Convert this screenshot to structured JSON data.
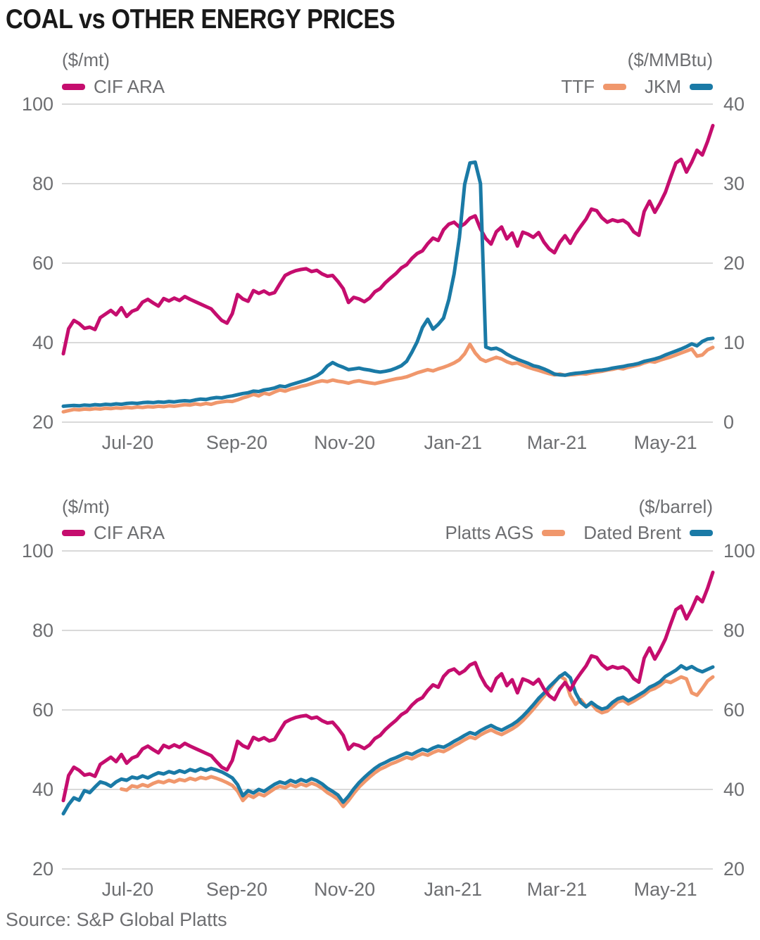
{
  "title": "COAL vs OTHER ENERGY PRICES",
  "source": "Source: S&P Global Platts",
  "colors": {
    "cif_ara": "#c50d6e",
    "ttf": "#f0976c",
    "jkm": "#1a7aa6",
    "platts_ags": "#f0976c",
    "dated_brent": "#1a7aa6",
    "grid": "#d9d9d9",
    "axis_text": "#6d6e71",
    "title_text": "#191919"
  },
  "chart_data": [
    {
      "type": "line",
      "grid": true,
      "legend_position": "top",
      "y_left": {
        "label": "($/mt)",
        "ticks": [
          100,
          80,
          60,
          40,
          20
        ],
        "range": [
          20,
          100
        ]
      },
      "y_right": {
        "label": "($/MMBtu)",
        "ticks": [
          40,
          30,
          20,
          10,
          0
        ],
        "range": [
          0,
          40
        ]
      },
      "x_ticks": [
        {
          "label": "Jul-20",
          "pos": 0.099
        },
        {
          "label": "Sep-20",
          "pos": 0.267
        },
        {
          "label": "Nov-20",
          "pos": 0.433
        },
        {
          "label": "Jan-21",
          "pos": 0.6
        },
        {
          "label": "Mar-21",
          "pos": 0.76
        },
        {
          "label": "May-21",
          "pos": 0.927
        }
      ],
      "legend_left": [
        {
          "name": "CIF ARA",
          "color": "cif_ara"
        }
      ],
      "legend_right": [
        {
          "name": "TTF",
          "color": "ttf"
        },
        {
          "name": "JKM",
          "color": "jkm"
        }
      ],
      "series": [
        {
          "name": "CIF ARA",
          "axis": "left",
          "color": "cif_ara",
          "values": [
            37.2,
            43.5,
            45.6,
            44.8,
            43.6,
            43.9,
            43.3,
            46.3,
            47.2,
            48.1,
            47.0,
            48.8,
            46.6,
            47.9,
            48.4,
            50.2,
            50.9,
            50.0,
            49.2,
            51.1,
            50.5,
            51.2,
            50.6,
            51.6,
            50.9,
            50.3,
            49.7,
            49.1,
            48.5,
            47.0,
            45.6,
            44.9,
            47.3,
            52.1,
            51.0,
            50.4,
            53.1,
            52.4,
            53.0,
            52.2,
            52.6,
            54.8,
            56.9,
            57.6,
            58.1,
            58.4,
            58.6,
            57.9,
            58.2,
            57.3,
            56.7,
            56.9,
            55.4,
            53.6,
            50.1,
            51.4,
            51.0,
            50.3,
            51.2,
            52.8,
            53.6,
            55.1,
            56.3,
            57.4,
            58.8,
            59.6,
            61.2,
            62.4,
            63.1,
            64.9,
            66.3,
            65.7,
            68.4,
            69.8,
            70.3,
            69.1,
            69.9,
            71.3,
            71.9,
            68.6,
            66.2,
            64.8,
            67.9,
            69.1,
            66.1,
            67.6,
            64.3,
            67.8,
            67.3,
            66.5,
            67.7,
            65.3,
            63.6,
            62.6,
            65.2,
            66.9,
            65.0,
            67.4,
            69.3,
            71.1,
            73.6,
            73.2,
            71.4,
            70.3,
            70.9,
            70.5,
            70.8,
            69.9,
            67.9,
            67.0,
            73.0,
            75.6,
            72.8,
            75.1,
            77.8,
            81.6,
            85.2,
            86.1,
            82.9,
            85.4,
            88.4,
            87.2,
            90.6,
            94.6
          ]
        },
        {
          "name": "TTF",
          "axis": "right",
          "color": "ttf",
          "values": [
            1.3,
            1.45,
            1.6,
            1.55,
            1.65,
            1.6,
            1.7,
            1.65,
            1.75,
            1.7,
            1.8,
            1.75,
            1.85,
            1.8,
            1.9,
            1.85,
            1.95,
            1.9,
            2.0,
            1.95,
            2.05,
            2.0,
            2.1,
            2.2,
            2.15,
            2.3,
            2.2,
            2.35,
            2.25,
            2.45,
            2.55,
            2.65,
            2.6,
            2.8,
            3.05,
            3.25,
            3.5,
            3.3,
            3.65,
            3.5,
            3.8,
            4.05,
            3.9,
            4.15,
            4.3,
            4.5,
            4.65,
            4.85,
            5.05,
            5.2,
            5.1,
            5.3,
            5.15,
            5.05,
            4.9,
            5.1,
            5.2,
            5.05,
            4.95,
            4.85,
            5.0,
            5.15,
            5.3,
            5.45,
            5.55,
            5.7,
            5.95,
            6.2,
            6.4,
            6.6,
            6.45,
            6.7,
            6.9,
            7.15,
            7.45,
            7.85,
            8.6,
            9.8,
            8.7,
            7.95,
            7.65,
            7.9,
            8.15,
            7.95,
            7.6,
            7.35,
            7.45,
            7.15,
            6.9,
            6.7,
            6.5,
            6.3,
            6.1,
            5.95,
            6.05,
            5.9,
            5.95,
            6.0,
            6.1,
            6.05,
            6.2,
            6.3,
            6.4,
            6.55,
            6.65,
            6.8,
            6.7,
            6.9,
            7.05,
            7.2,
            7.45,
            7.65,
            7.55,
            7.8,
            8.0,
            8.2,
            8.45,
            8.7,
            8.95,
            9.2,
            8.3,
            8.45,
            9.1,
            9.4
          ]
        },
        {
          "name": "JKM",
          "axis": "right",
          "color": "jkm",
          "values": [
            2.0,
            2.05,
            2.1,
            2.05,
            2.15,
            2.1,
            2.2,
            2.15,
            2.25,
            2.2,
            2.3,
            2.25,
            2.35,
            2.4,
            2.35,
            2.45,
            2.5,
            2.45,
            2.55,
            2.5,
            2.6,
            2.55,
            2.65,
            2.7,
            2.65,
            2.8,
            2.9,
            2.85,
            3.0,
            3.1,
            3.05,
            3.2,
            3.3,
            3.45,
            3.6,
            3.7,
            3.9,
            3.85,
            4.05,
            4.15,
            4.3,
            4.55,
            4.45,
            4.7,
            4.9,
            5.1,
            5.3,
            5.55,
            5.85,
            6.3,
            7.05,
            7.5,
            7.15,
            6.9,
            6.6,
            6.7,
            6.8,
            6.65,
            6.55,
            6.4,
            6.3,
            6.4,
            6.55,
            6.8,
            7.1,
            7.65,
            8.8,
            10.1,
            11.9,
            12.95,
            11.7,
            12.3,
            13.1,
            15.4,
            18.65,
            23.2,
            29.9,
            32.6,
            32.7,
            30.0,
            9.45,
            9.2,
            9.3,
            9.0,
            8.55,
            8.2,
            7.9,
            7.65,
            7.4,
            7.1,
            6.95,
            6.7,
            6.4,
            6.05,
            5.95,
            5.9,
            6.05,
            6.15,
            6.2,
            6.3,
            6.4,
            6.5,
            6.55,
            6.65,
            6.8,
            6.9,
            7.0,
            7.15,
            7.25,
            7.4,
            7.65,
            7.8,
            7.95,
            8.15,
            8.45,
            8.7,
            8.95,
            9.2,
            9.5,
            9.85,
            9.6,
            10.15,
            10.45,
            10.55
          ]
        }
      ]
    },
    {
      "type": "line",
      "grid": true,
      "legend_position": "top",
      "y_left": {
        "label": "($/mt)",
        "ticks": [
          100,
          80,
          60,
          40,
          20
        ],
        "range": [
          20,
          100
        ]
      },
      "y_right": {
        "label": "($/barrel)",
        "ticks": [
          100,
          80,
          60,
          40,
          20
        ],
        "range": [
          20,
          100
        ]
      },
      "x_ticks": [
        {
          "label": "Jul-20",
          "pos": 0.099
        },
        {
          "label": "Sep-20",
          "pos": 0.267
        },
        {
          "label": "Nov-20",
          "pos": 0.433
        },
        {
          "label": "Jan-21",
          "pos": 0.6
        },
        {
          "label": "Mar-21",
          "pos": 0.76
        },
        {
          "label": "May-21",
          "pos": 0.927
        }
      ],
      "legend_left": [
        {
          "name": "CIF ARA",
          "color": "cif_ara"
        }
      ],
      "legend_right": [
        {
          "name": "Platts AGS",
          "color": "platts_ags"
        },
        {
          "name": "Dated Brent",
          "color": "dated_brent"
        }
      ],
      "series": [
        {
          "name": "Platts AGS",
          "axis": "right",
          "color": "platts_ags",
          "values": [
            null,
            null,
            null,
            null,
            null,
            null,
            null,
            null,
            null,
            null,
            null,
            40.1,
            39.8,
            40.9,
            40.6,
            41.2,
            40.8,
            41.5,
            42.0,
            41.7,
            42.3,
            41.9,
            42.5,
            42.2,
            42.8,
            42.4,
            43.0,
            42.7,
            43.2,
            42.8,
            42.3,
            41.7,
            41.0,
            39.6,
            37.2,
            38.6,
            38.0,
            38.9,
            38.4,
            39.3,
            40.2,
            40.8,
            40.4,
            41.2,
            40.7,
            41.4,
            40.9,
            41.6,
            41.1,
            40.3,
            39.2,
            38.4,
            37.5,
            35.7,
            37.2,
            39.0,
            40.6,
            41.9,
            43.1,
            44.2,
            45.1,
            45.7,
            46.4,
            46.9,
            47.5,
            48.1,
            47.7,
            48.4,
            49.0,
            48.6,
            49.3,
            49.8,
            49.5,
            50.2,
            51.0,
            51.7,
            52.5,
            53.2,
            52.8,
            53.7,
            54.4,
            55.0,
            54.3,
            53.8,
            54.5,
            55.2,
            56.1,
            57.3,
            58.7,
            60.2,
            61.8,
            63.4,
            65.1,
            66.9,
            68.5,
            67.7,
            63.6,
            61.4,
            62.6,
            60.9,
            61.6,
            60.0,
            59.3,
            59.7,
            60.8,
            62.0,
            62.4,
            61.5,
            62.2,
            63.0,
            63.8,
            64.9,
            65.4,
            66.2,
            67.3,
            66.9,
            67.6,
            68.3,
            67.8,
            64.3,
            63.7,
            65.4,
            67.3,
            68.3
          ]
        },
        {
          "name": "Dated Brent",
          "axis": "right",
          "color": "dated_brent",
          "values": [
            33.9,
            36.2,
            37.9,
            37.3,
            39.7,
            39.2,
            40.6,
            41.9,
            41.5,
            40.8,
            41.9,
            42.6,
            42.3,
            43.1,
            42.8,
            43.4,
            42.9,
            43.6,
            44.2,
            43.9,
            44.5,
            44.1,
            44.7,
            44.3,
            45.0,
            44.6,
            45.2,
            44.8,
            45.3,
            44.9,
            44.4,
            43.7,
            42.9,
            41.2,
            38.4,
            39.7,
            39.1,
            40.0,
            39.5,
            40.4,
            41.3,
            41.9,
            41.5,
            42.3,
            41.8,
            42.5,
            42.0,
            42.7,
            42.2,
            41.4,
            40.3,
            39.5,
            38.6,
            36.8,
            38.3,
            40.1,
            41.7,
            43.0,
            44.2,
            45.3,
            46.2,
            46.8,
            47.5,
            48.0,
            48.6,
            49.2,
            48.8,
            49.5,
            50.1,
            49.7,
            50.4,
            50.9,
            50.6,
            51.3,
            52.1,
            52.8,
            53.6,
            54.3,
            53.9,
            54.8,
            55.5,
            56.1,
            55.4,
            54.9,
            55.6,
            56.3,
            57.2,
            58.4,
            59.8,
            61.3,
            62.9,
            64.2,
            65.8,
            67.1,
            68.4,
            69.3,
            68.1,
            64.3,
            61.9,
            60.8,
            61.9,
            60.9,
            60.2,
            60.6,
            61.9,
            62.8,
            63.2,
            62.3,
            63.0,
            63.8,
            64.6,
            65.7,
            66.3,
            67.1,
            68.4,
            69.2,
            70.0,
            71.1,
            70.3,
            70.9,
            70.1,
            69.6,
            70.2,
            70.8
          ]
        },
        {
          "name": "CIF ARA",
          "axis": "left",
          "color": "cif_ara",
          "values": [
            37.2,
            43.5,
            45.6,
            44.8,
            43.6,
            43.9,
            43.3,
            46.3,
            47.2,
            48.1,
            47.0,
            48.8,
            46.6,
            47.9,
            48.4,
            50.2,
            50.9,
            50.0,
            49.2,
            51.1,
            50.5,
            51.2,
            50.6,
            51.6,
            50.9,
            50.3,
            49.7,
            49.1,
            48.5,
            47.0,
            45.6,
            44.9,
            47.3,
            52.1,
            51.0,
            50.4,
            53.1,
            52.4,
            53.0,
            52.2,
            52.6,
            54.8,
            56.9,
            57.6,
            58.1,
            58.4,
            58.6,
            57.9,
            58.2,
            57.3,
            56.7,
            56.9,
            55.4,
            53.6,
            50.1,
            51.4,
            51.0,
            50.3,
            51.2,
            52.8,
            53.6,
            55.1,
            56.3,
            57.4,
            58.8,
            59.6,
            61.2,
            62.4,
            63.1,
            64.9,
            66.3,
            65.7,
            68.4,
            69.8,
            70.3,
            69.1,
            69.9,
            71.3,
            71.9,
            68.6,
            66.2,
            64.8,
            67.9,
            69.1,
            66.1,
            67.6,
            64.3,
            67.8,
            67.3,
            66.5,
            67.7,
            65.3,
            63.6,
            62.6,
            65.2,
            66.9,
            65.0,
            67.4,
            69.3,
            71.1,
            73.6,
            73.2,
            71.4,
            70.3,
            70.9,
            70.5,
            70.8,
            69.9,
            67.9,
            67.0,
            73.0,
            75.6,
            72.8,
            75.1,
            77.8,
            81.6,
            85.2,
            86.1,
            82.9,
            85.4,
            88.4,
            87.2,
            90.6,
            94.6
          ]
        }
      ]
    }
  ]
}
